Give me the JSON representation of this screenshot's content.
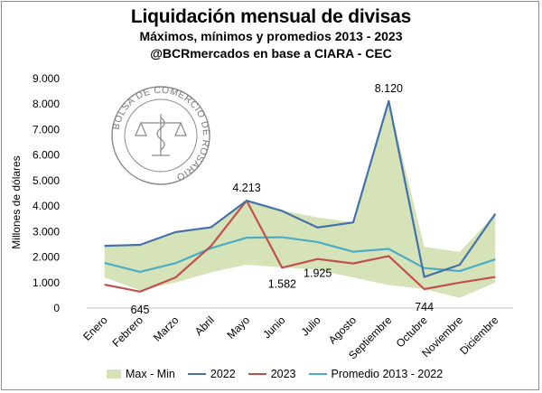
{
  "header": {
    "title": "Liquidación mensual de divisas",
    "subtitle": "Máximos, mínimos y promedios 2013 - 2023",
    "source": "@BCRmercados en base a CIARA - CEC"
  },
  "watermark": {
    "text": "BOLSA DE COMERCIO DE ROSARIO"
  },
  "colors": {
    "band": "#d6e3b8",
    "y2022": "#4472a8",
    "y2023": "#c0504d",
    "avg": "#4bacc6"
  },
  "chart_data": {
    "type": "line",
    "title": "Liquidación mensual de divisas",
    "ylabel": "Millones de dólares",
    "xlabel": "",
    "ylim": [
      0,
      9000
    ],
    "yticks": [
      0,
      1000,
      2000,
      3000,
      4000,
      5000,
      6000,
      7000,
      8000,
      9000
    ],
    "ytick_labels": [
      "0",
      "1.000",
      "2.000",
      "3.000",
      "4.000",
      "5.000",
      "6.000",
      "7.000",
      "8.000",
      "9.000"
    ],
    "categories": [
      "Enero",
      "Febrero",
      "Marzo",
      "Abril",
      "Mayo",
      "Junio",
      "Julio",
      "Agosto",
      "Septiembre",
      "Octubre",
      "Noviembre",
      "Diciembre"
    ],
    "band": {
      "name": "Max - Min",
      "max": [
        2450,
        2500,
        2980,
        3200,
        4213,
        3830,
        3550,
        3370,
        8120,
        2400,
        2200,
        3700
      ],
      "min": [
        1200,
        700,
        1000,
        1400,
        1700,
        1600,
        1500,
        1200,
        900,
        750,
        400,
        1000
      ]
    },
    "series": [
      {
        "name": "2022",
        "values": [
          2440,
          2480,
          2980,
          3170,
          4213,
          3810,
          3160,
          3360,
          8120,
          1220,
          1700,
          3700
        ]
      },
      {
        "name": "2023",
        "values": [
          920,
          645,
          1200,
          2440,
          4213,
          1582,
          1925,
          1750,
          2040,
          744,
          1000,
          1220
        ]
      },
      {
        "name": "Promedio 2013 - 2022",
        "values": [
          1770,
          1420,
          1760,
          2350,
          2760,
          2780,
          2590,
          2210,
          2320,
          1570,
          1450,
          1910
        ]
      }
    ],
    "data_labels": [
      {
        "series": "2022",
        "index": 4,
        "text": "4.213"
      },
      {
        "series": "2022",
        "index": 8,
        "text": "8.120"
      },
      {
        "series": "2023",
        "index": 1,
        "text": "645"
      },
      {
        "series": "2023",
        "index": 5,
        "text": "1.582"
      },
      {
        "series": "2023",
        "index": 6,
        "text": "1.925"
      },
      {
        "series": "2023",
        "index": 9,
        "text": "744"
      }
    ],
    "grid": false,
    "legend_position": "bottom"
  },
  "legend": {
    "band": "Max - Min",
    "s2022": "2022",
    "s2023": "2023",
    "avg": "Promedio 2013 - 2022"
  }
}
